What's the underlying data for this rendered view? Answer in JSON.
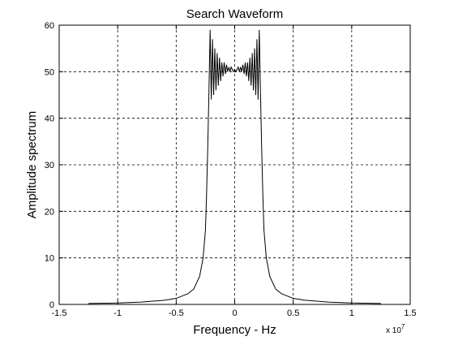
{
  "chart_data": {
    "type": "line",
    "title": "Search Waveform",
    "xlabel": "Frequency - Hz",
    "ylabel": "Amplitude spectrum",
    "x_exponent_label": "x 10",
    "x_exponent_power": "7",
    "xlim": [
      -1.5,
      1.5
    ],
    "ylim": [
      0,
      60
    ],
    "grid": true,
    "x_ticks": [
      -1.5,
      -1,
      -0.5,
      0,
      0.5,
      1,
      1.5
    ],
    "x_tick_labels": [
      "-1.5",
      "-1",
      "-0.5",
      "0",
      "0.5",
      "1",
      "1.5"
    ],
    "y_ticks": [
      0,
      10,
      20,
      30,
      40,
      50,
      60
    ],
    "y_tick_labels": [
      "0",
      "10",
      "20",
      "30",
      "40",
      "50",
      "60"
    ],
    "series": [
      {
        "color": "#000000",
        "x": [
          -1.25,
          -1.0,
          -0.8,
          -0.6,
          -0.5,
          -0.4,
          -0.35,
          -0.3,
          -0.27,
          -0.25,
          -0.24,
          -0.23,
          -0.22,
          -0.21,
          -0.2,
          -0.19,
          -0.18,
          -0.17,
          -0.16,
          -0.15,
          -0.14,
          -0.13,
          -0.12,
          -0.11,
          -0.1,
          -0.09,
          -0.08,
          -0.07,
          -0.06,
          -0.05,
          -0.04,
          -0.03,
          -0.02,
          -0.01,
          0.0,
          0.01,
          0.02,
          0.03,
          0.04,
          0.05,
          0.06,
          0.07,
          0.08,
          0.09,
          0.1,
          0.11,
          0.12,
          0.13,
          0.14,
          0.15,
          0.16,
          0.17,
          0.18,
          0.19,
          0.2,
          0.21,
          0.22,
          0.23,
          0.24,
          0.25,
          0.27,
          0.3,
          0.35,
          0.4,
          0.5,
          0.6,
          0.8,
          1.0,
          1.25
        ],
        "y": [
          0.2,
          0.3,
          0.5,
          0.9,
          1.3,
          2.3,
          3.3,
          6.0,
          10.0,
          16.0,
          24.0,
          34.0,
          46.0,
          59.0,
          44.0,
          57.0,
          45.0,
          55.0,
          46.0,
          54.0,
          47.0,
          53.0,
          48.0,
          52.0,
          49.0,
          52.0,
          49.5,
          51.5,
          50.0,
          51.0,
          50.0,
          51.0,
          50.5,
          50.0,
          50.5,
          50.0,
          50.5,
          51.0,
          50.0,
          51.0,
          50.0,
          51.5,
          49.5,
          52.0,
          49.0,
          52.0,
          48.0,
          53.0,
          47.0,
          54.0,
          46.0,
          55.0,
          45.0,
          57.0,
          44.0,
          59.0,
          46.0,
          34.0,
          24.0,
          16.0,
          10.0,
          6.0,
          3.3,
          2.3,
          1.3,
          0.9,
          0.5,
          0.3,
          0.2
        ]
      }
    ]
  }
}
